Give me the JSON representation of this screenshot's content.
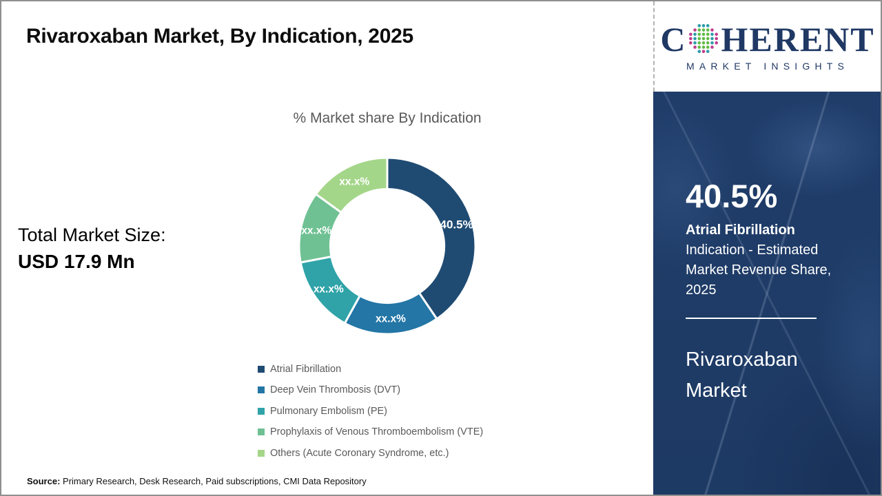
{
  "slide": {
    "title": "Rivaroxaban Market, By Indication, 2025",
    "total_market_label": "Total Market Size:",
    "total_market_value": "USD 17.9 Mn",
    "source_label": "Source:",
    "source_text": " Primary Research, Desk Research, Paid subscriptions, CMI Data Repository"
  },
  "logo": {
    "brand_prefix": "C",
    "brand_suffix": "HERENT",
    "brand_subtitle": "MARKET INSIGHTS",
    "brand_color": "#1f3864"
  },
  "sidebar": {
    "stat_value": "40.5%",
    "stat_name": "Atrial Fibrillation",
    "stat_desc": "Indication - Estimated Market Revenue Share, 2025",
    "report_name": "Rivaroxaban Market",
    "background_color": "#1e3a64"
  },
  "chart_data": {
    "type": "pie",
    "subtype": "donut",
    "title": "% Market share By Indication",
    "categories": [
      "Atrial Fibrillation",
      "Deep Vein Thrombosis (DVT)",
      "Pulmonary Embolism (PE)",
      "Prophylaxis of Venous Thromboembolism (VTE)",
      "Others (Acute Coronary Syndrome, etc.)"
    ],
    "values": [
      40.5,
      17.5,
      14.0,
      13.0,
      15.0
    ],
    "slice_labels": [
      "40.5%",
      "xx.x%",
      "xx.x%",
      "xx.x%",
      "xx.x%"
    ],
    "labels_masked": [
      false,
      true,
      true,
      true,
      true
    ],
    "colors": [
      "#1f4b73",
      "#2376a6",
      "#2fa3a8",
      "#6fc193",
      "#a4d689"
    ],
    "start_angle_deg": 0,
    "direction": "clockwise",
    "inner_radius_ratio": 0.645,
    "legend_position": "bottom-left",
    "label_color": "#ffffff"
  }
}
